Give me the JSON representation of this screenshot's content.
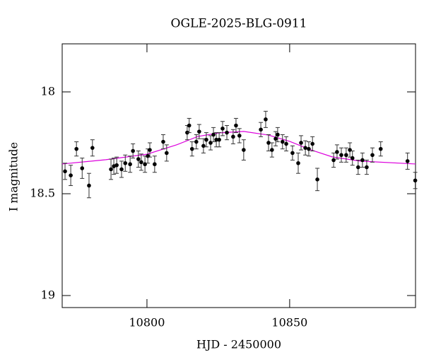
{
  "chart_data": {
    "type": "scatter",
    "title": "OGLE-2025-BLG-0911",
    "xlabel": "HJD - 2450000",
    "ylabel": "I magnitude",
    "inverted_y": true,
    "color": "#000000",
    "x": [
      10771.3,
      10773.3,
      10775.3,
      10777.3,
      10779.7,
      10780.9,
      10787.4,
      10788.4,
      10789.4,
      10791.1,
      10792.4,
      10794.1,
      10795.1,
      10797.0,
      10798.0,
      10799.3,
      10800.3,
      10801.0,
      10802.7,
      10805.7,
      10806.9,
      10814.1,
      10814.8,
      10815.8,
      10817.3,
      10818.3,
      10819.8,
      10820.8,
      10822.3,
      10823.3,
      10824.3,
      10825.3,
      10826.5,
      10828.0,
      10830.2,
      10831.2,
      10832.4,
      10833.9,
      10839.9,
      10841.6,
      10842.6,
      10843.8,
      10845.1,
      10845.8,
      10847.5,
      10848.8,
      10851.0,
      10853.0,
      10854.0,
      10855.5,
      10856.7,
      10858.0,
      10859.7,
      10865.4,
      10866.6,
      10868.1,
      10869.8,
      10871.1,
      10872.0,
      10874.0,
      10875.5,
      10877.0,
      10879.0,
      10881.9,
      10891.3,
      10894.0
    ],
    "values": [
      18.39,
      18.41,
      18.28,
      18.375,
      18.46,
      18.275,
      18.38,
      18.365,
      18.36,
      18.38,
      18.35,
      18.355,
      18.29,
      18.33,
      18.345,
      18.355,
      18.315,
      18.285,
      18.355,
      18.245,
      18.3,
      18.2,
      18.165,
      18.28,
      18.245,
      18.195,
      18.265,
      18.235,
      18.25,
      18.21,
      18.235,
      18.235,
      18.18,
      18.2,
      18.22,
      18.165,
      18.215,
      18.285,
      18.185,
      18.135,
      18.25,
      18.285,
      18.23,
      18.21,
      18.245,
      18.255,
      18.3,
      18.35,
      18.25,
      18.275,
      18.28,
      18.255,
      18.43,
      18.335,
      18.295,
      18.31,
      18.31,
      18.285,
      18.325,
      18.37,
      18.335,
      18.37,
      18.31,
      18.28,
      18.34,
      18.435
    ],
    "errors": [
      0.04,
      0.05,
      0.035,
      0.05,
      0.06,
      0.04,
      0.05,
      0.04,
      0.04,
      0.04,
      0.04,
      0.04,
      0.035,
      0.04,
      0.04,
      0.04,
      0.035,
      0.035,
      0.04,
      0.035,
      0.04,
      0.035,
      0.035,
      0.035,
      0.035,
      0.035,
      0.035,
      0.035,
      0.035,
      0.035,
      0.035,
      0.035,
      0.035,
      0.035,
      0.035,
      0.035,
      0.035,
      0.05,
      0.035,
      0.04,
      0.04,
      0.035,
      0.035,
      0.035,
      0.035,
      0.035,
      0.035,
      0.05,
      0.035,
      0.035,
      0.035,
      0.035,
      0.055,
      0.035,
      0.035,
      0.035,
      0.035,
      0.035,
      0.035,
      0.035,
      0.035,
      0.035,
      0.035,
      0.035,
      0.04,
      0.04
    ],
    "model": {
      "color": "#dd00dd",
      "x": [
        10770.3,
        10785.6,
        10800.0,
        10810.4,
        10817.8,
        10825.3,
        10833.9,
        10842.6,
        10850.0,
        10857.5,
        10864.9,
        10874.8,
        10894.1
      ],
      "values": [
        18.354,
        18.333,
        18.306,
        18.26,
        18.219,
        18.201,
        18.194,
        18.212,
        18.243,
        18.285,
        18.319,
        18.34,
        18.354
      ]
    },
    "xlim": [
      10770.3,
      10894.1
    ],
    "ylim": [
      17.764,
      19.059
    ],
    "xticks": [
      10800,
      10850
    ],
    "yticks": [
      18,
      18.5,
      19
    ]
  }
}
